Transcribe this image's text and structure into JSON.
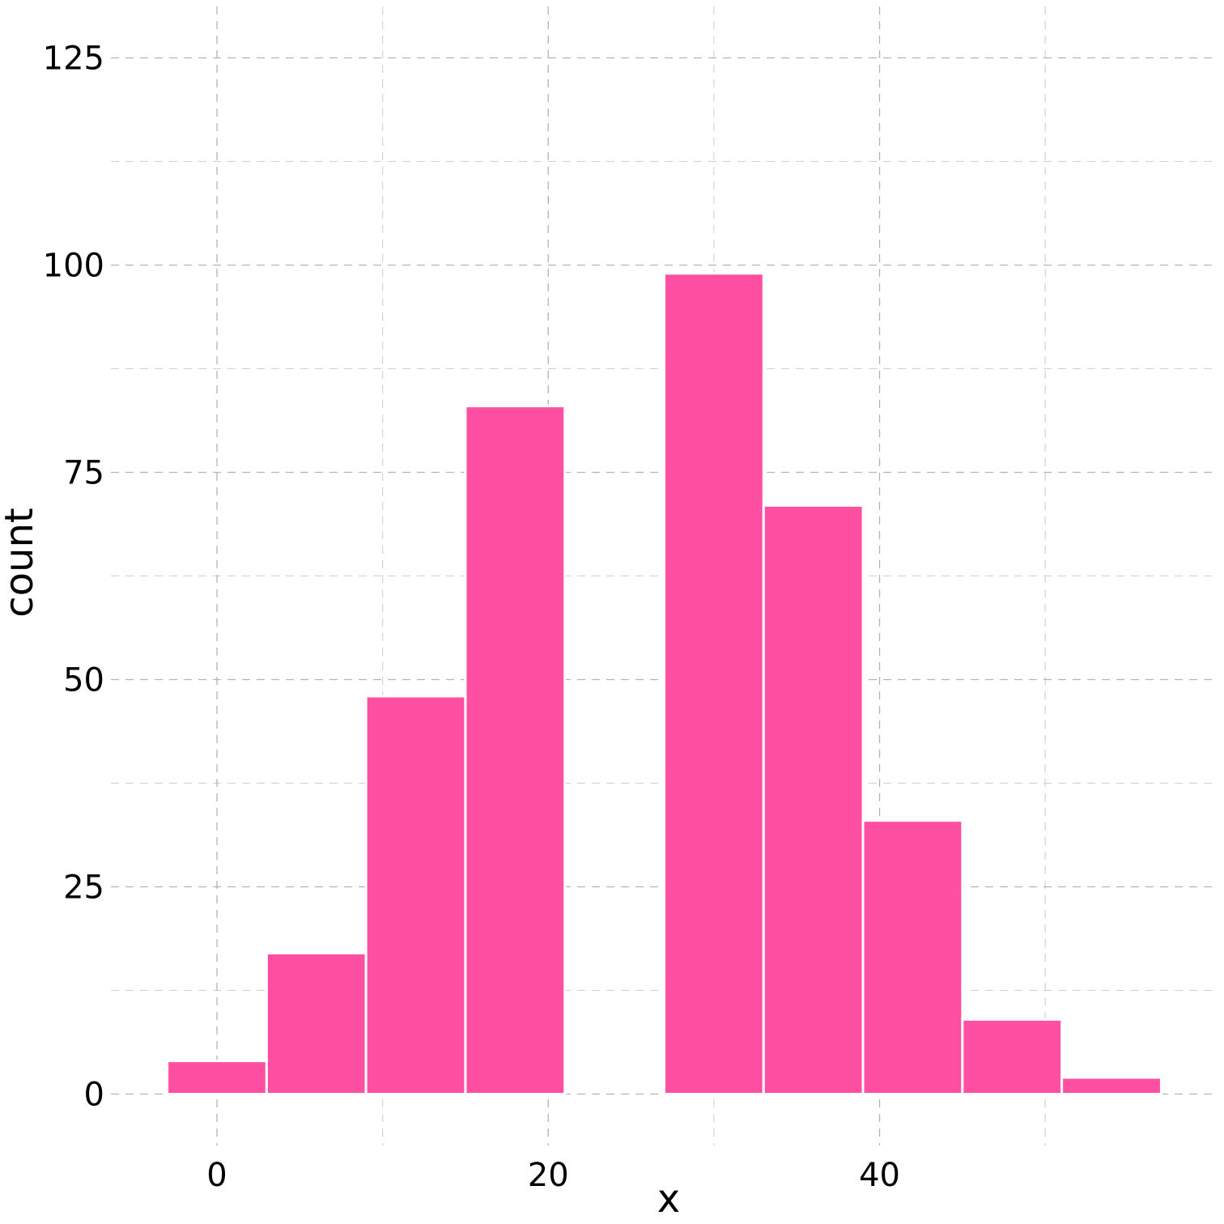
{
  "chart_data": {
    "type": "bar",
    "xlabel": "x",
    "ylabel": "count",
    "bar_color": "#ff4fa3",
    "bin_width": 6,
    "bins": [
      {
        "x0": -3,
        "x1": 3,
        "count": 4
      },
      {
        "x0": 3,
        "x1": 9,
        "count": 17
      },
      {
        "x0": 9,
        "x1": 15,
        "count": 48
      },
      {
        "x0": 15,
        "x1": 21,
        "count": 83
      },
      {
        "x0": 21,
        "x1": 27,
        "count": 0
      },
      {
        "x0": 27,
        "x1": 33,
        "count": 99
      },
      {
        "x0": 33,
        "x1": 39,
        "count": 71
      },
      {
        "x0": 39,
        "x1": 45,
        "count": 33
      },
      {
        "x0": 45,
        "x1": 51,
        "count": 9
      },
      {
        "x0": 51,
        "x1": 57,
        "count": 2
      }
    ],
    "x_ticks": [
      0,
      20,
      40
    ],
    "x_minor_ticks": [
      10,
      30,
      50
    ],
    "y_ticks": [
      0,
      25,
      50,
      75,
      100,
      125
    ],
    "y_minor_ticks": [
      12.5,
      37.5,
      62.5,
      87.5,
      112.5
    ],
    "xlim": [
      -6.4,
      60.4
    ],
    "ylim": [
      -6.2,
      131.2
    ],
    "grid": true,
    "grid_style": "dashed"
  }
}
